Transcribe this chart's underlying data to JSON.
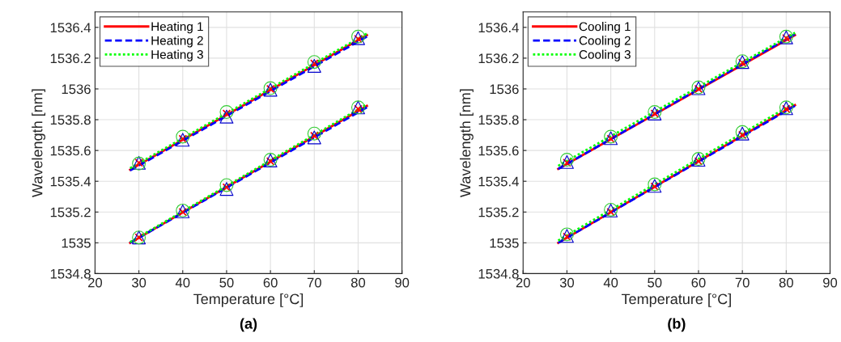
{
  "chart_data": [
    {
      "type": "line",
      "xlabel": "Temperature [°C]",
      "ylabel": "Wavelength [nm]",
      "annotations": [
        "(a)"
      ],
      "xlim": [
        20,
        90
      ],
      "xticks": [
        20,
        30,
        40,
        50,
        60,
        70,
        80,
        90
      ],
      "ylim": [
        1534.8,
        1536.5
      ],
      "yticks": [
        1534.8,
        1535,
        1535.2,
        1535.4,
        1535.6,
        1535.8,
        1536,
        1536.2,
        1536.4
      ],
      "grid": true,
      "legend": "top left",
      "series": [
        {
          "name": "Heating 1",
          "color": "#ff0000",
          "line_style": "solid",
          "x": [
            28,
            82
          ],
          "values": [
            1535.475,
            1536.35
          ]
        },
        {
          "name": "Heating 2",
          "color": "#0000ff",
          "line_style": "dashed",
          "x": [
            28,
            82
          ],
          "values": [
            1535.47,
            1536.34
          ]
        },
        {
          "name": "Heating 3",
          "color": "#00ff00",
          "line_style": "dotted",
          "x": [
            28,
            82
          ],
          "values": [
            1535.485,
            1536.36
          ]
        },
        {
          "color": "#ff0000",
          "line_style": "solid",
          "x": [
            28,
            82
          ],
          "values": [
            1535.0,
            1535.89
          ]
        },
        {
          "color": "#0000ff",
          "line_style": "dashed",
          "x": [
            28,
            82
          ],
          "values": [
            1535.0,
            1535.88
          ]
        },
        {
          "color": "#00ff00",
          "line_style": "dotted",
          "x": [
            28,
            82
          ],
          "values": [
            1535.005,
            1535.9
          ]
        },
        {
          "color": "#ff0000",
          "type": "scatter",
          "marker": "cross",
          "x": [
            30,
            40,
            50,
            60,
            70,
            80
          ],
          "values": [
            1535.52,
            1535.675,
            1535.84,
            1536.0,
            1536.165,
            1536.325
          ]
        },
        {
          "color": "#0000cc",
          "type": "scatter",
          "marker": "triangle",
          "x": [
            30,
            40,
            50,
            60,
            70,
            80
          ],
          "values": [
            1535.52,
            1535.67,
            1535.82,
            1535.995,
            1536.15,
            1536.33
          ]
        },
        {
          "color": "#33cc33",
          "type": "scatter",
          "marker": "circle",
          "x": [
            30,
            40,
            50,
            60,
            70,
            80
          ],
          "values": [
            1535.515,
            1535.69,
            1535.85,
            1536.005,
            1536.175,
            1536.34
          ]
        },
        {
          "color": "#ff0000",
          "type": "scatter",
          "marker": "cross",
          "x": [
            30,
            40,
            50,
            60,
            70,
            80
          ],
          "values": [
            1535.035,
            1535.2,
            1535.36,
            1535.53,
            1535.695,
            1535.87
          ]
        },
        {
          "color": "#0000cc",
          "type": "scatter",
          "marker": "triangle",
          "x": [
            30,
            40,
            50,
            60,
            70,
            80
          ],
          "values": [
            1535.035,
            1535.205,
            1535.35,
            1535.535,
            1535.685,
            1535.88
          ]
        },
        {
          "color": "#33cc33",
          "type": "scatter",
          "marker": "circle",
          "x": [
            30,
            40,
            50,
            60,
            70,
            80
          ],
          "values": [
            1535.035,
            1535.21,
            1535.375,
            1535.54,
            1535.71,
            1535.88
          ]
        }
      ]
    },
    {
      "type": "line",
      "xlabel": "Temperature [°C]",
      "ylabel": "Wavelength [nm]",
      "annotations": [
        "(b)"
      ],
      "xlim": [
        20,
        90
      ],
      "xticks": [
        20,
        30,
        40,
        50,
        60,
        70,
        80,
        90
      ],
      "ylim": [
        1534.8,
        1536.5
      ],
      "yticks": [
        1534.8,
        1535,
        1535.2,
        1535.4,
        1535.6,
        1535.8,
        1536,
        1536.2,
        1536.4
      ],
      "grid": true,
      "legend": "top left",
      "series": [
        {
          "name": "Cooling 1",
          "color": "#ff0000",
          "line_style": "solid",
          "x": [
            28,
            82
          ],
          "values": [
            1535.48,
            1536.35
          ]
        },
        {
          "name": "Cooling 2",
          "color": "#0000ff",
          "line_style": "dashed",
          "x": [
            28,
            82
          ],
          "values": [
            1535.48,
            1536.355
          ]
        },
        {
          "name": "Cooling 3",
          "color": "#00ff00",
          "line_style": "dotted",
          "x": [
            28,
            82
          ],
          "values": [
            1535.5,
            1536.365
          ]
        },
        {
          "color": "#ff0000",
          "line_style": "solid",
          "x": [
            28,
            82
          ],
          "values": [
            1535.0,
            1535.895
          ]
        },
        {
          "color": "#0000ff",
          "line_style": "dashed",
          "x": [
            28,
            82
          ],
          "values": [
            1535.0,
            1535.89
          ]
        },
        {
          "color": "#00ff00",
          "line_style": "dotted",
          "x": [
            28,
            82
          ],
          "values": [
            1535.015,
            1535.91
          ]
        },
        {
          "color": "#ff0000",
          "type": "scatter",
          "marker": "cross",
          "x": [
            30,
            40,
            50,
            60,
            70,
            80
          ],
          "values": [
            1535.52,
            1535.675,
            1535.84,
            1536.0,
            1536.17,
            1536.33
          ]
        },
        {
          "color": "#0000cc",
          "type": "scatter",
          "marker": "triangle",
          "x": [
            30,
            40,
            50,
            60,
            70,
            80
          ],
          "values": [
            1535.525,
            1535.68,
            1535.84,
            1536.005,
            1536.175,
            1536.335
          ]
        },
        {
          "color": "#33cc33",
          "type": "scatter",
          "marker": "circle",
          "x": [
            30,
            40,
            50,
            60,
            70,
            80
          ],
          "values": [
            1535.54,
            1535.69,
            1535.85,
            1536.01,
            1536.18,
            1536.34
          ]
        },
        {
          "color": "#ff0000",
          "type": "scatter",
          "marker": "cross",
          "x": [
            30,
            40,
            50,
            60,
            70,
            80
          ],
          "values": [
            1535.04,
            1535.2,
            1535.365,
            1535.53,
            1535.7,
            1535.87
          ]
        },
        {
          "color": "#0000cc",
          "type": "scatter",
          "marker": "triangle",
          "x": [
            30,
            40,
            50,
            60,
            70,
            80
          ],
          "values": [
            1535.045,
            1535.21,
            1535.37,
            1535.54,
            1535.71,
            1535.875
          ]
        },
        {
          "color": "#33cc33",
          "type": "scatter",
          "marker": "circle",
          "x": [
            30,
            40,
            50,
            60,
            70,
            80
          ],
          "values": [
            1535.055,
            1535.215,
            1535.38,
            1535.545,
            1535.72,
            1535.88
          ]
        }
      ]
    }
  ]
}
